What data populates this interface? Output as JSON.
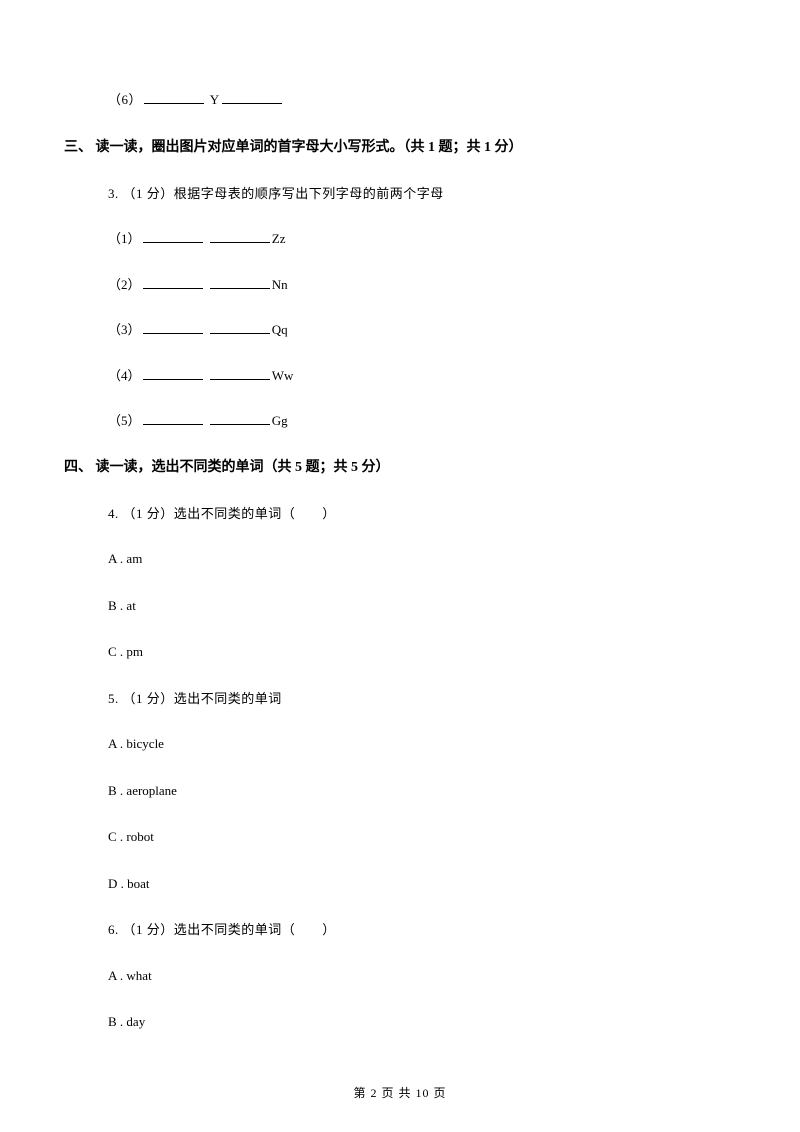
{
  "top_item": {
    "num": "（6）",
    "suffix": " Y"
  },
  "section3": {
    "heading": "三、 读一读，圈出图片对应单词的首字母大小写形式。（共 1 题；共 1 分）",
    "question": "3. （1 分）根据字母表的顺序写出下列字母的前两个字母",
    "items": [
      {
        "num": "（1）",
        "suffix": "Zz"
      },
      {
        "num": "（2）",
        "suffix": "Nn"
      },
      {
        "num": "（3）",
        "suffix": "Qq"
      },
      {
        "num": "（4）",
        "suffix": "Ww"
      },
      {
        "num": "（5）",
        "suffix": "Gg"
      }
    ]
  },
  "section4": {
    "heading": "四、 读一读，选出不同类的单词（共 5 题；共 5 分）",
    "q4": {
      "stem": "4. （1 分）选出不同类的单词（　　）",
      "options": [
        "A . am",
        "B . at",
        "C . pm"
      ]
    },
    "q5": {
      "stem": "5. （1 分）选出不同类的单词",
      "options": [
        "A . bicycle",
        "B . aeroplane",
        "C . robot",
        "D . boat"
      ]
    },
    "q6": {
      "stem": "6. （1 分）选出不同类的单词（　　）",
      "options": [
        "A . what",
        "B . day"
      ]
    }
  },
  "footer": "第 2 页 共 10 页"
}
